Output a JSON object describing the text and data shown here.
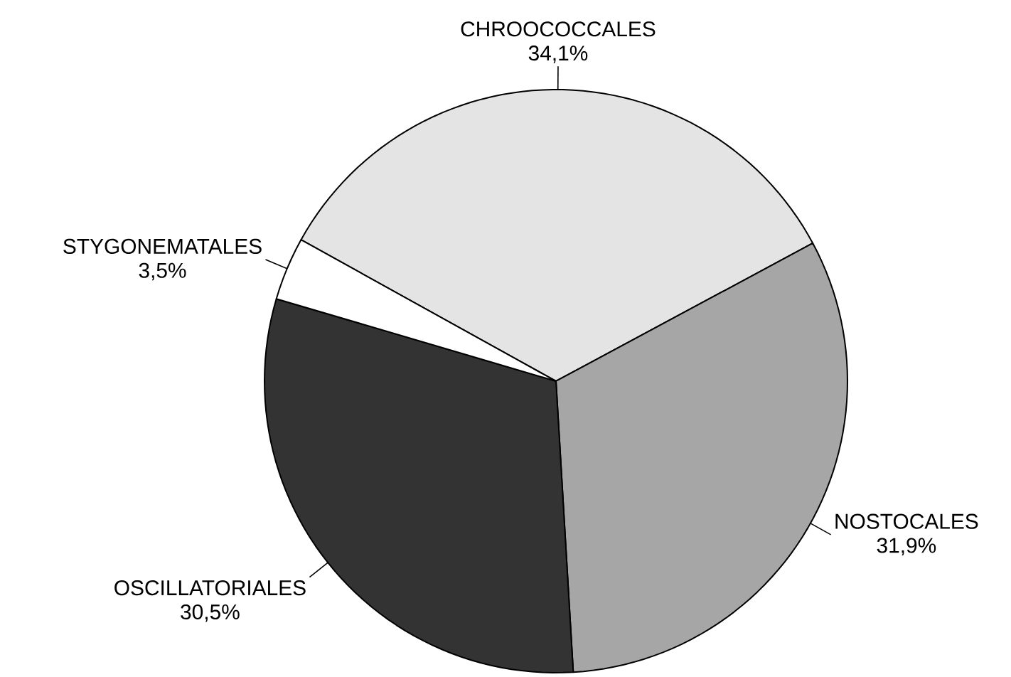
{
  "chart_data": {
    "type": "pie",
    "categories": [
      "CHROOCOCCALES",
      "NOSTOCALES",
      "OSCILLATORIALES",
      "STYGONEMATALES"
    ],
    "values": [
      34.1,
      31.9,
      30.5,
      3.5
    ],
    "value_labels": [
      "34,1%",
      "31,9%",
      "30,5%",
      "3,5%"
    ],
    "colors": [
      "#e4e4e4",
      "#a6a6a6",
      "#333333",
      "#ffffff"
    ]
  }
}
